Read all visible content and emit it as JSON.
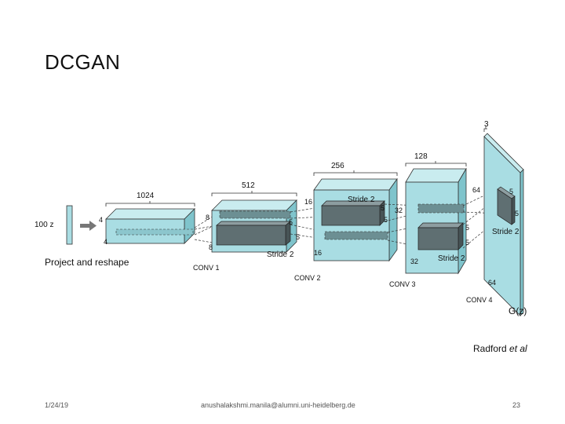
{
  "slide": {
    "title": "DCGAN",
    "credit_name": "Radford ",
    "credit_italic": "et al",
    "footer_date": "1/24/19",
    "footer_email": "anushalakshmi.manila@alumni.uni-heidelberg.de",
    "footer_page": "23"
  },
  "diagram": {
    "input_label": "100 z",
    "project_label": "Project and reshape",
    "g_label": "G(z)",
    "stage0": {
      "width_label": "1024",
      "side_a": "4",
      "side_b": "4"
    },
    "conv1": {
      "name": "CONV 1",
      "width_label": "512",
      "side_a": "8",
      "side_b": "8",
      "kernel_a": "5",
      "kernel_b": "5",
      "stride": "Stride 2"
    },
    "conv2": {
      "name": "CONV 2",
      "width_label": "256",
      "side_a": "16",
      "side_b": "16",
      "kernel_a": "5",
      "kernel_b": "5",
      "stride": "Stride 2"
    },
    "conv3": {
      "name": "CONV 3",
      "width_label": "128",
      "side_a": "32",
      "side_b": "32",
      "kernel_a": "5",
      "kernel_b": "5",
      "stride": "Stride 2"
    },
    "conv4": {
      "name": "CONV 4",
      "width_label": "3",
      "side_a": "64",
      "side_b": "64",
      "kernel_a": "5",
      "kernel_b": "5",
      "stride": "Stride 2"
    }
  }
}
